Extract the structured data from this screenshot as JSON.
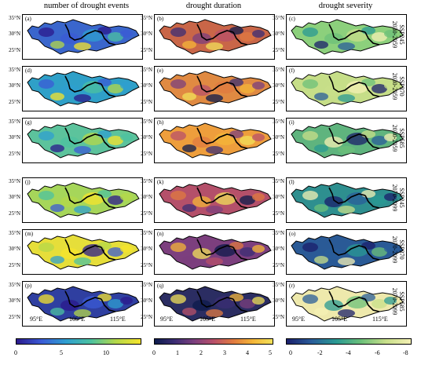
{
  "columns": {
    "events": "number of drought events",
    "duration": "drought duration",
    "severity": "drought severity"
  },
  "panel_labels": [
    "(a)",
    "(b)",
    "(c)",
    "(d)",
    "(e)",
    "(f)",
    "(g)",
    "(h)",
    "(i)",
    "(j)",
    "(k)",
    "(l)",
    "(m)",
    "(n)",
    "(o)",
    "(p)",
    "(q)",
    "(r)"
  ],
  "rows": [
    {
      "scenario": "SSP245",
      "period": "2030-2059"
    },
    {
      "scenario": "SSP370",
      "period": "2030-2059"
    },
    {
      "scenario": "SSP585",
      "period": "2030-2059"
    },
    {
      "scenario": "SSP245",
      "period": "2070-2099"
    },
    {
      "scenario": "SSP370",
      "period": "2070-2099"
    },
    {
      "scenario": "SSP585",
      "period": "2070-2099"
    }
  ],
  "lat_ticks": [
    "35°N",
    "30°N",
    "25°N"
  ],
  "lon_ticks": [
    "95°E",
    "105°E",
    "115°E"
  ],
  "colorbars": {
    "events": {
      "ticks": [
        "0",
        "5",
        "10"
      ],
      "colors": [
        "#2b1a8c",
        "#3b5bd6",
        "#2f9fd0",
        "#4cc2a0",
        "#b4d84a",
        "#f6e42c"
      ]
    },
    "duration": {
      "ticks": [
        "0",
        "1",
        "2",
        "3",
        "4",
        "5"
      ],
      "colors": [
        "#0d1b4c",
        "#3b2d74",
        "#7b3f7e",
        "#b8506a",
        "#e07a40",
        "#f4b638",
        "#f2e05a"
      ]
    },
    "severity": {
      "ticks": [
        "0",
        "-2",
        "-4",
        "-6",
        "-8"
      ],
      "colors": [
        "#1b1f6b",
        "#2a5d9a",
        "#2a9a93",
        "#6cc07a",
        "#c8df8a",
        "#f4f0b4"
      ]
    }
  },
  "panel_fill": {
    "events": [
      "#3a66cc",
      "#2fa0c8",
      "#5cc39c",
      "#a6d65a",
      "#e6de3a",
      "#2f3fa0"
    ],
    "duration": [
      "#c96648",
      "#e08a42",
      "#ee9e3c",
      "#b4506a",
      "#7c3f7e",
      "#2b2d62"
    ],
    "severity": [
      "#8cd07c",
      "#c6de88",
      "#5fb47e",
      "#2e8f8f",
      "#2a5a96",
      "#eee9ac"
    ]
  }
}
